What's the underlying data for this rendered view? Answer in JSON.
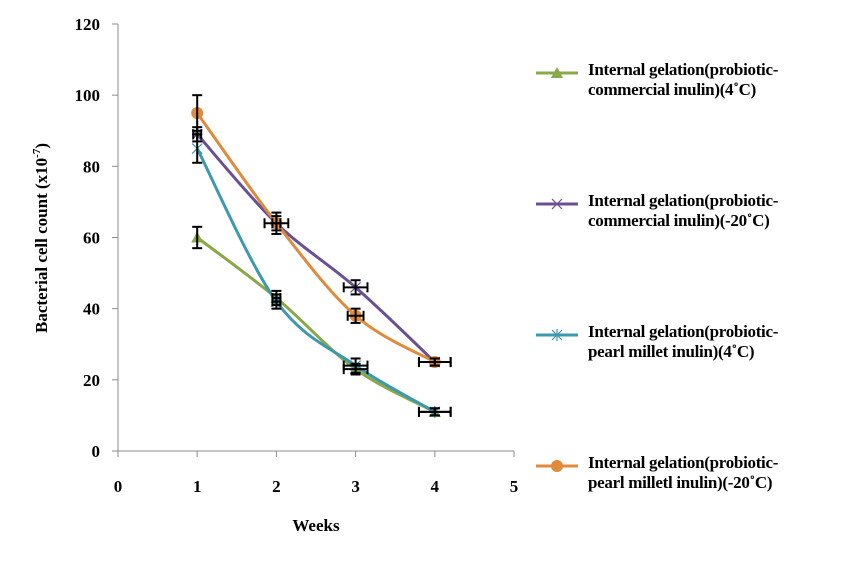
{
  "chart_data": {
    "type": "line",
    "title": "",
    "xlabel": "Weeks",
    "ylabel": "Bacterial cell count (x10",
    "ylabel_superscript": "-7",
    "ylabel_suffix": ")",
    "xlim": [
      0,
      5
    ],
    "ylim": [
      0,
      120
    ],
    "x_ticks": [
      "0",
      "1",
      "2",
      "3",
      "4",
      "5"
    ],
    "y_ticks": [
      "0",
      "20",
      "40",
      "60",
      "80",
      "100",
      "120"
    ],
    "grid": false,
    "legend_position": "right",
    "smooth": true,
    "error_bars": "x and y",
    "x": [
      1,
      2,
      3,
      4
    ],
    "series": [
      {
        "name": "Internal gelation(probiotic-commercial inulin)(4˚C)",
        "legend_lines": [
          "Internal gelation(probiotic-",
          "commercial inulin)(4˚C)"
        ],
        "color": "#8aa84a",
        "marker": "triangle",
        "values": [
          60,
          43,
          23,
          11
        ],
        "y_error": [
          3,
          2,
          1.5,
          1
        ],
        "x_error": [
          0,
          0.05,
          0.15,
          0.2
        ]
      },
      {
        "name": "Internal gelation(probiotic-commercial inulin)(-20˚C)",
        "legend_lines": [
          "Internal gelation(probiotic-",
          "commercial inulin)(-20˚C)"
        ],
        "color": "#6a4f93",
        "marker": "x",
        "values": [
          89,
          64,
          46,
          25
        ],
        "y_error": [
          2,
          2,
          2,
          1
        ],
        "x_error": [
          0.05,
          0.15,
          0.15,
          0.2
        ]
      },
      {
        "name": "Internal gelation(probiotic-pearl millet inulin)(4˚C)",
        "legend_lines": [
          "Internal gelation(probiotic-",
          "pearl millet inulin)(4˚C)"
        ],
        "color": "#3c99ae",
        "marker": "star",
        "values": [
          85,
          42,
          24,
          11
        ],
        "y_error": [
          4,
          2,
          2,
          1
        ],
        "x_error": [
          0,
          0.05,
          0.15,
          0.2
        ]
      },
      {
        "name": "Internal gelation(probiotic-pearl milletl inulin)(-20˚C)",
        "legend_lines": [
          "Internal gelation(probiotic-",
          "pearl milletl inulin)(-20˚C)"
        ],
        "color": "#e08a3c",
        "marker": "circle",
        "values": [
          95,
          64,
          38,
          25
        ],
        "y_error": [
          5,
          3,
          2,
          1
        ],
        "x_error": [
          0,
          0.05,
          0.1,
          0.2
        ]
      }
    ]
  }
}
